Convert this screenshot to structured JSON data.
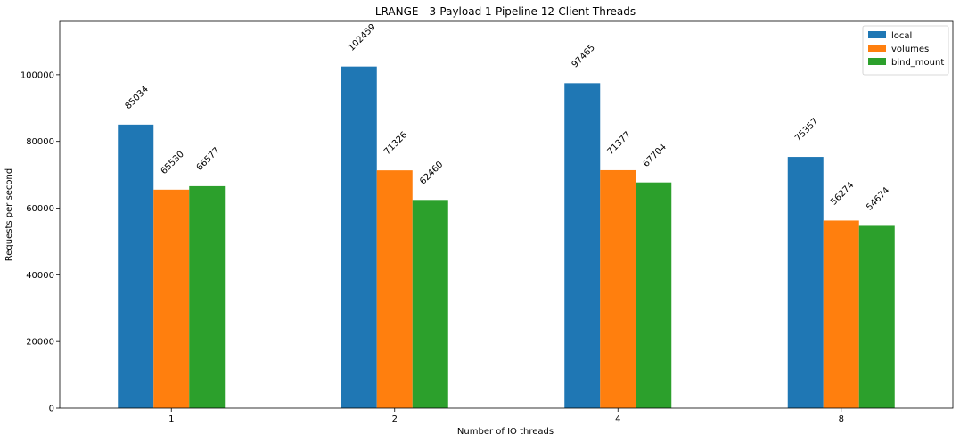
{
  "chart_data": {
    "type": "bar",
    "title": "LRANGE - 3-Payload 1-Pipeline 12-Client Threads",
    "xlabel": "Number of IO threads",
    "ylabel": "Requests per second",
    "categories": [
      "1",
      "2",
      "4",
      "8"
    ],
    "series": [
      {
        "name": "local",
        "values": [
          85034,
          102459,
          97465,
          75357
        ],
        "color": "#1f77b4"
      },
      {
        "name": "volumes",
        "values": [
          65530,
          71326,
          71377,
          56274
        ],
        "color": "#ff7f0e"
      },
      {
        "name": "bind_mount",
        "values": [
          66577,
          62460,
          67704,
          54674
        ],
        "color": "#2ca02c"
      }
    ],
    "ylim": [
      0,
      116000
    ],
    "yticks": [
      0,
      20000,
      40000,
      60000,
      80000,
      100000
    ],
    "legend_position": "top-right",
    "grid": false
  }
}
